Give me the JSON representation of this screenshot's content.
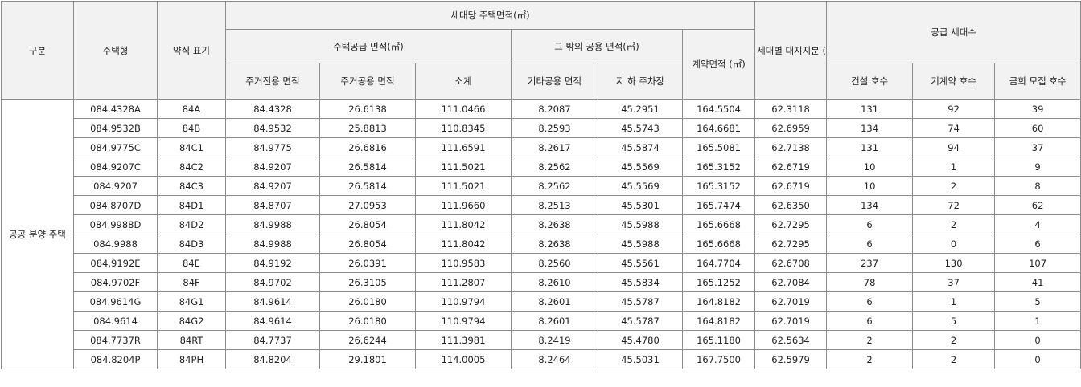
{
  "header": {
    "category": "구분",
    "housing_type": "주택형",
    "abbr": "약식\n표기",
    "area_per_household": "세대당 주택면적(㎡)",
    "supply_area": "주택공급\n면적(㎡)",
    "other_common_area": "그 밖의\n공용 면적(㎡)",
    "contract_area": "계약면적\n(㎡)",
    "land_share": "세대별\n대지지분\n(㎡)",
    "supply_households": "공급 세대수",
    "exclusive": "주거전용\n면적",
    "common": "주거공용\n면적",
    "subtotal": "소계",
    "other_common": "기타공용\n면적",
    "parking": "지  하\n주차장",
    "built": "건설 호수",
    "pre_contracted": "기계약 호수",
    "this_round": "금회 모집 호수"
  },
  "category_label": "공공\n분양\n주택",
  "rows": [
    [
      "084.4328A",
      "84A",
      "84.4328",
      "26.6138",
      "111.0466",
      "8.2087",
      "45.2951",
      "164.5504",
      "62.3118",
      "131",
      "92",
      "39"
    ],
    [
      "084.9532B",
      "84B",
      "84.9532",
      "25.8813",
      "110.8345",
      "8.2593",
      "45.5743",
      "164.6681",
      "62.6959",
      "134",
      "74",
      "60"
    ],
    [
      "084.9775C",
      "84C1",
      "84.9775",
      "26.6816",
      "111.6591",
      "8.2617",
      "45.5874",
      "165.5081",
      "62.7138",
      "131",
      "94",
      "37"
    ],
    [
      "084.9207C",
      "84C2",
      "84.9207",
      "26.5814",
      "111.5021",
      "8.2562",
      "45.5569",
      "165.3152",
      "62.6719",
      "10",
      "1",
      "9"
    ],
    [
      "084.9207",
      "84C3",
      "84.9207",
      "26.5814",
      "111.5021",
      "8.2562",
      "45.5569",
      "165.3152",
      "62.6719",
      "10",
      "2",
      "8"
    ],
    [
      "084.8707D",
      "84D1",
      "84.8707",
      "27.0953",
      "111.9660",
      "8.2513",
      "45.5301",
      "165.7474",
      "62.6350",
      "134",
      "72",
      "62"
    ],
    [
      "084.9988D",
      "84D2",
      "84.9988",
      "26.8054",
      "111.8042",
      "8.2638",
      "45.5988",
      "165.6668",
      "62.7295",
      "6",
      "2",
      "4"
    ],
    [
      "084.9988",
      "84D3",
      "84.9988",
      "26.8054",
      "111.8042",
      "8.2638",
      "45.5988",
      "165.6668",
      "62.7295",
      "6",
      "0",
      "6"
    ],
    [
      "084.9192E",
      "84E",
      "84.9192",
      "26.0391",
      "110.9583",
      "8.2560",
      "45.5561",
      "164.7704",
      "62.6708",
      "237",
      "130",
      "107"
    ],
    [
      "084.9702F",
      "84F",
      "84.9702",
      "26.3105",
      "111.2807",
      "8.2610",
      "45.5834",
      "165.1252",
      "62.7084",
      "78",
      "37",
      "41"
    ],
    [
      "084.9614G",
      "84G1",
      "84.9614",
      "26.0180",
      "110.9794",
      "8.2601",
      "45.5787",
      "164.8182",
      "62.7019",
      "6",
      "1",
      "5"
    ],
    [
      "084.9614",
      "84G2",
      "84.9614",
      "26.0180",
      "110.9794",
      "8.2601",
      "45.5787",
      "164.8182",
      "62.7019",
      "6",
      "5",
      "1"
    ],
    [
      "084.7737R",
      "84RT",
      "84.7737",
      "26.6244",
      "111.3981",
      "8.2419",
      "45.4780",
      "165.1180",
      "62.5634",
      "2",
      "2",
      "0"
    ],
    [
      "084.8204P",
      "84PH",
      "84.8204",
      "29.1801",
      "114.0005",
      "8.2464",
      "45.5031",
      "167.7500",
      "62.5979",
      "2",
      "2",
      "0"
    ]
  ],
  "colors": {
    "header_bg": "#f2f2f2",
    "border": "#8c8c8c"
  }
}
